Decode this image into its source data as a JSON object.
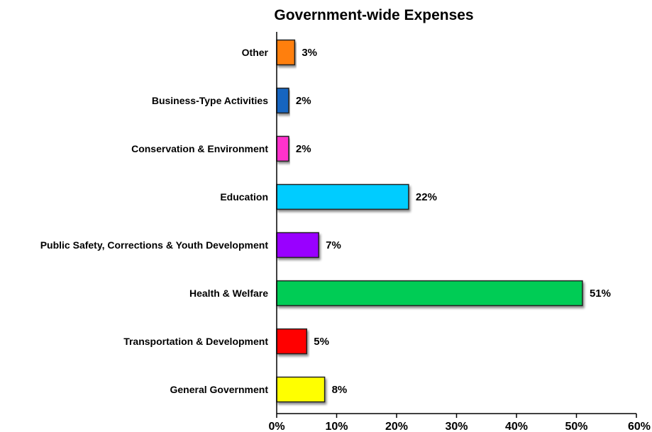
{
  "chart_data": {
    "type": "bar",
    "orientation": "horizontal",
    "title": "Government-wide Expenses",
    "categories": [
      "Other",
      "Business-Type Activities",
      "Conservation & Environment",
      "Education",
      "Public Safety, Corrections & Youth Development",
      "Health & Welfare",
      "Transportation & Development",
      "General Government"
    ],
    "values": [
      3,
      2,
      2,
      22,
      7,
      51,
      5,
      8
    ],
    "value_labels": [
      "3%",
      "2%",
      "2%",
      "22%",
      "7%",
      "51%",
      "5%",
      "8%"
    ],
    "colors": [
      "#FF7F0E",
      "#1565C0",
      "#FF33CC",
      "#00CCFF",
      "#9900FF",
      "#00CC55",
      "#FF0000",
      "#FFFF00"
    ],
    "xlim": [
      0,
      60
    ],
    "x_ticks": [
      0,
      10,
      20,
      30,
      40,
      50,
      60
    ],
    "x_tick_labels": [
      "0%",
      "10%",
      "20%",
      "30%",
      "40%",
      "50%",
      "60%"
    ],
    "xlabel": "",
    "ylabel": "",
    "grid": false,
    "legend": "none"
  }
}
